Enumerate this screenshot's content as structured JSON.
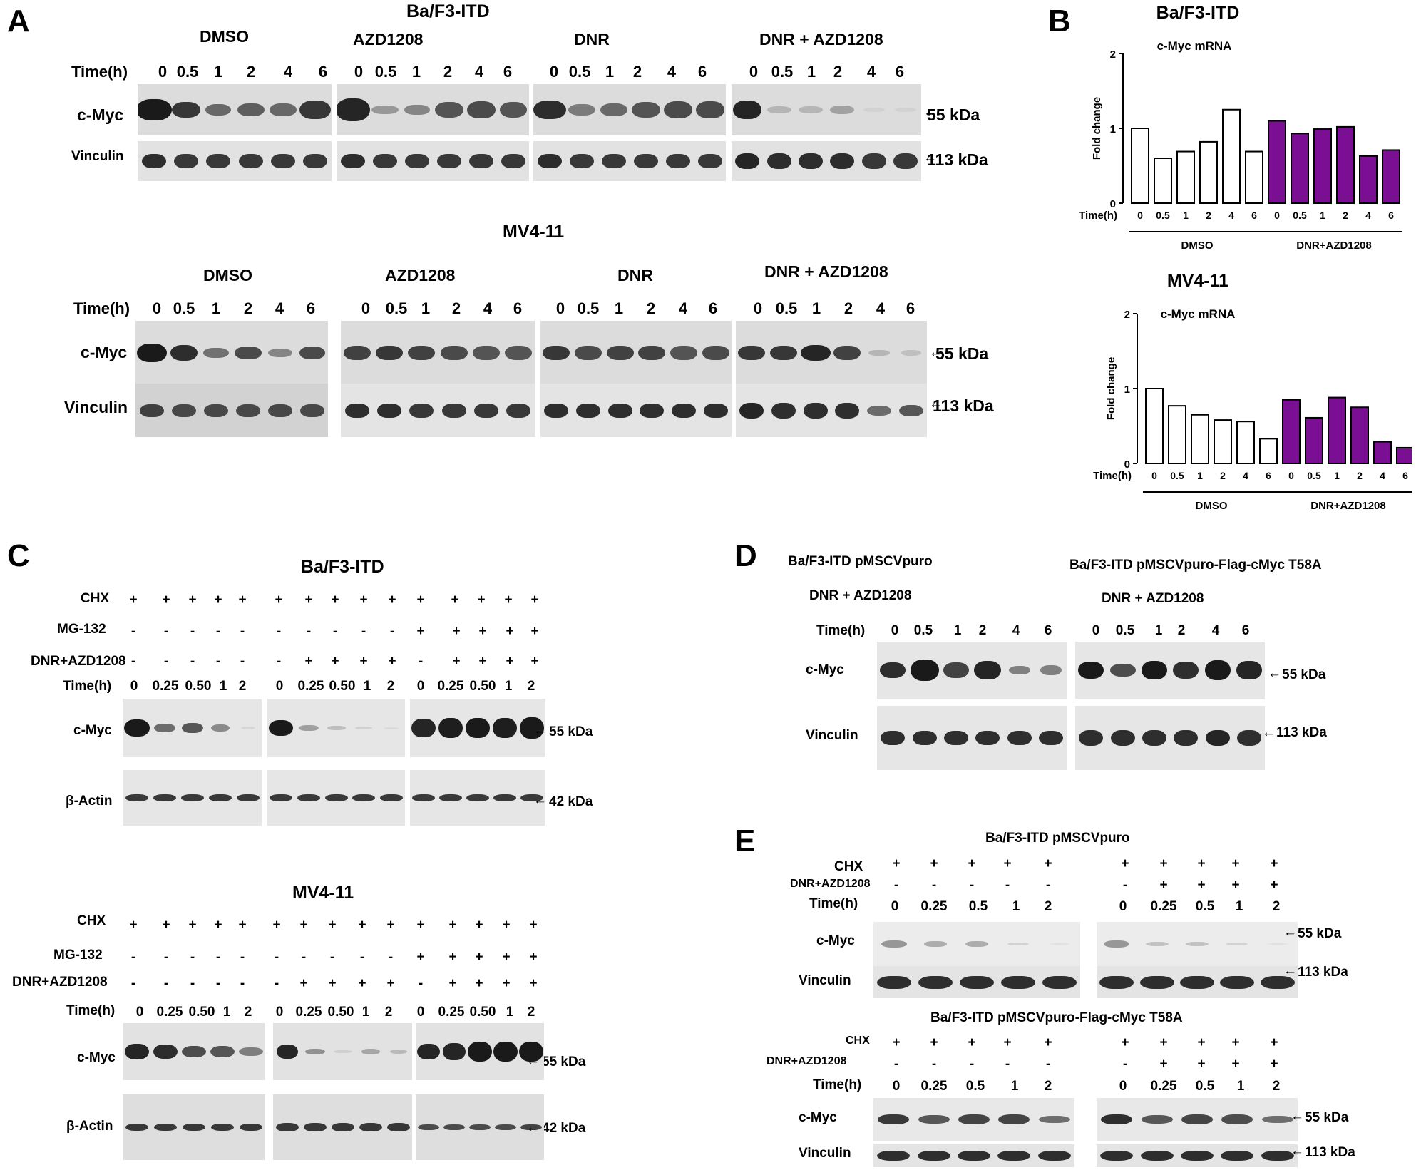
{
  "panels": {
    "a": "A",
    "b": "B",
    "c": "C",
    "d": "D",
    "e": "E"
  },
  "panelA": {
    "cell1": "Ba/F3-ITD",
    "cell2": "MV4-11",
    "treatments": [
      "DMSO",
      "AZD1208",
      "DNR",
      "DNR + AZD1208"
    ],
    "time_label": "Time(h)",
    "times": [
      "0",
      "0.5",
      "1",
      "2",
      "4",
      "6"
    ],
    "row1": "c-Myc",
    "row2": "Vinculin",
    "kda1": "55 kDa",
    "kda2": "113 kDa"
  },
  "panelB": {
    "chart_data": [
      {
        "type": "bar",
        "title": "Ba/F3-ITD",
        "subtitle": "c-Myc mRNA",
        "ylabel": "Fold change",
        "xlabel": "Time(h)",
        "ylim": [
          0,
          2
        ],
        "yticks": [
          "0",
          "1",
          "2"
        ],
        "groups": [
          "DMSO",
          "DNR+AZD1208"
        ],
        "categories": [
          "0",
          "0.5",
          "1",
          "2",
          "4",
          "6"
        ],
        "series": [
          {
            "name": "DMSO",
            "color": "#ffffff",
            "values": [
              1.0,
              0.6,
              0.69,
              0.82,
              1.25,
              0.69
            ]
          },
          {
            "name": "DNR+AZD1208",
            "color": "#7b0f94",
            "values": [
              1.1,
              0.93,
              0.99,
              1.02,
              0.63,
              0.71
            ]
          }
        ]
      },
      {
        "type": "bar",
        "title": "MV4-11",
        "subtitle": "c-Myc mRNA",
        "ylabel": "Fold change",
        "xlabel": "Time(h)",
        "ylim": [
          0,
          2
        ],
        "yticks": [
          "0",
          "1",
          "2"
        ],
        "groups": [
          "DMSO",
          "DNR+AZD1208"
        ],
        "categories": [
          "0",
          "0.5",
          "1",
          "2",
          "4",
          "6"
        ],
        "series": [
          {
            "name": "DMSO",
            "color": "#ffffff",
            "values": [
              1.0,
              0.77,
              0.65,
              0.58,
              0.56,
              0.33
            ]
          },
          {
            "name": "DNR+AZD1208",
            "color": "#7b0f94",
            "values": [
              0.85,
              0.61,
              0.88,
              0.75,
              0.29,
              0.21
            ]
          }
        ]
      }
    ]
  },
  "panelC": {
    "cell1": "Ba/F3-ITD",
    "cell2": "MV4-11",
    "rows": [
      "CHX",
      "MG-132",
      "DNR+AZD1208"
    ],
    "time_label": "Time(h)",
    "times": [
      "0",
      "0.25",
      "0.50",
      "1",
      "2"
    ],
    "signs": {
      "chx": [
        "+",
        "+",
        "+",
        "+",
        "+"
      ],
      "mg_minus": [
        "-",
        "-",
        "-",
        "-",
        "-"
      ],
      "mg_plus": [
        "+",
        "+",
        "+",
        "+",
        "+"
      ],
      "dnr_minus": [
        "-",
        "-",
        "-",
        "-",
        "-"
      ],
      "dnr_mixed": [
        "-",
        "+",
        "+",
        "+",
        "+"
      ]
    },
    "row1": "c-Myc",
    "row2a": "β-Actin",
    "row2b": "β-Actin",
    "kda1": "55 kDa",
    "kda2": "42 kDa"
  },
  "panelD": {
    "title1": "Ba/F3-ITD pMSCVpuro",
    "title2": "Ba/F3-ITD pMSCVpuro-Flag-cMyc T58A",
    "treat": "DNR + AZD1208",
    "time_label": "Time(h)",
    "times": [
      "0",
      "0.5",
      "1",
      "2",
      "4",
      "6"
    ],
    "row1": "c-Myc",
    "row2": "Vinculin",
    "kda1": "55 kDa",
    "kda2": "113 kDa"
  },
  "panelE": {
    "title1": "Ba/F3-ITD pMSCVpuro",
    "title2": "Ba/F3-ITD pMSCVpuro-Flag-cMyc T58A",
    "rows": [
      "CHX",
      "DNR+AZD1208"
    ],
    "time_label": "Time(h)",
    "times": [
      "0",
      "0.25",
      "0.5",
      "1",
      "2"
    ],
    "signs": {
      "chx": [
        "+",
        "+",
        "+",
        "+",
        "+"
      ],
      "minus": [
        "-",
        "-",
        "-",
        "-",
        "-"
      ],
      "mixed": [
        "-",
        "+",
        "+",
        "+",
        "+"
      ]
    },
    "row1": "c-Myc",
    "row2": "Vinculin",
    "kda1": "55 kDa",
    "kda2": "113 kDa"
  }
}
